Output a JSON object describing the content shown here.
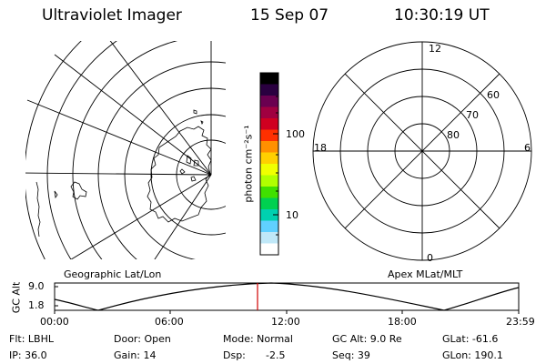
{
  "header": {
    "instrument": "Ultraviolet Imager",
    "date": "15 Sep 07",
    "time": "10:30:19 UT"
  },
  "left_panel": {
    "label": "Geographic Lat/Lon"
  },
  "colorbar": {
    "unit_label": "photon cm⁻²s⁻¹",
    "ticks": [
      "100",
      "10"
    ],
    "colors": [
      "#000000",
      "#2a0040",
      "#6a0050",
      "#a00040",
      "#d00020",
      "#ff3000",
      "#ff9000",
      "#ffd000",
      "#f0ff00",
      "#b0ff00",
      "#40e000",
      "#00d050",
      "#00d0b0",
      "#60d0ff",
      "#c0e8f8",
      "#ffffff"
    ]
  },
  "right_panel": {
    "label": "Apex MLat/MLT",
    "mlt_labels": [
      "12",
      "18",
      "6",
      "0"
    ],
    "lat_labels": [
      "60",
      "70",
      "80"
    ]
  },
  "altitude_plot": {
    "ylabel": "GC Alt",
    "yticks": [
      "9.0",
      "1.8"
    ],
    "xticks": [
      "00:00",
      "06:00",
      "12:00",
      "18:00",
      "23:59"
    ],
    "current_marker_color": "#d00000"
  },
  "footer": {
    "filter": "Flt: LBHL",
    "door": "Door: Open",
    "mode": "Mode: Normal",
    "gc_alt": "GC Alt: 9.0 Re",
    "glat": "GLat: -61.6",
    "ip": "IP: 36.0",
    "gain": "Gain: 14",
    "dsp_label": "Dsp:",
    "dsp_value": "-2.5",
    "seq": "Seq: 39",
    "glon": "GLon: 190.1"
  }
}
